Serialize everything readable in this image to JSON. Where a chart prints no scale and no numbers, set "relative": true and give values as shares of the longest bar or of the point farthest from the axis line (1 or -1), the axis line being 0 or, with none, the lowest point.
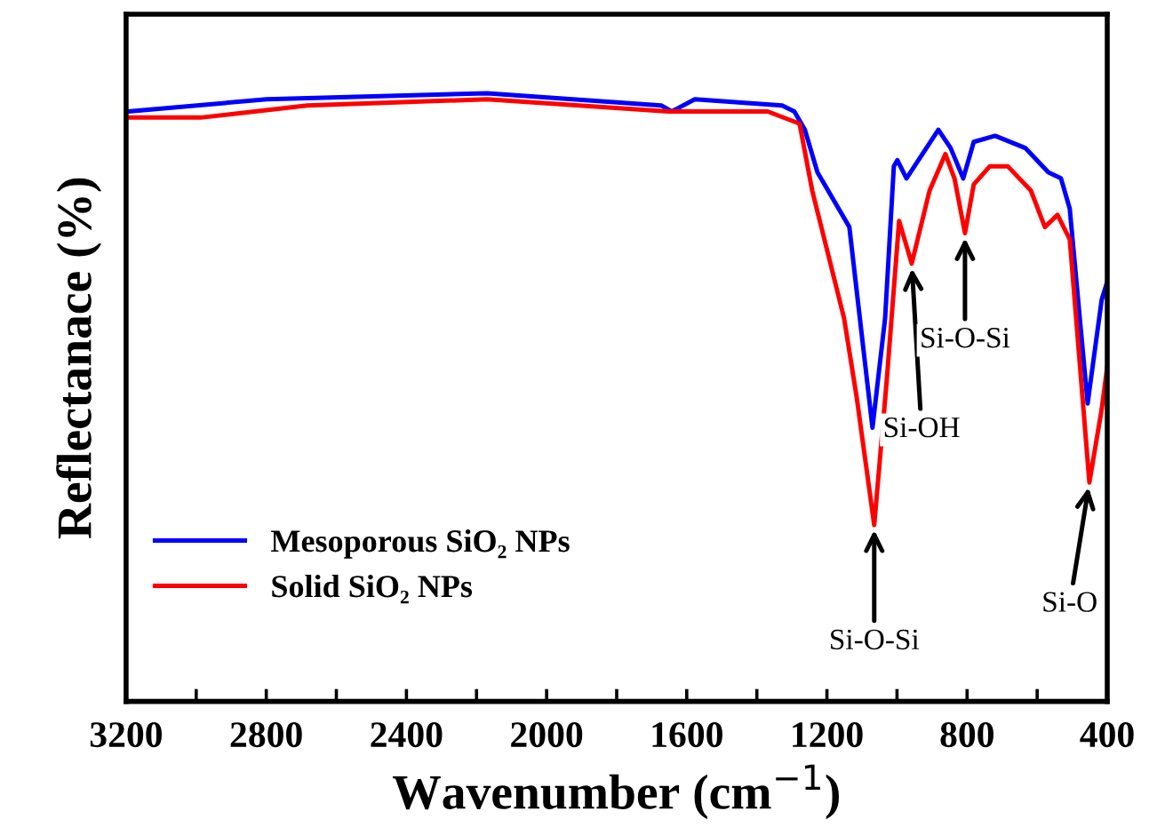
{
  "chart_data": {
    "type": "line",
    "relative": true,
    "xlabel": "Wavenumber (cm$^{−1}$)",
    "ylabel": "Reflectanace (%)",
    "xlim": [
      3200,
      400
    ],
    "xticks": [
      3200,
      {
        "value": 3000,
        "label": null
      },
      2800,
      {
        "value": 2600,
        "label": null
      },
      2400,
      {
        "value": 2200,
        "label": null
      },
      2000,
      {
        "value": 1800,
        "label": null
      },
      1600,
      {
        "value": 1400,
        "label": null
      },
      1200,
      {
        "value": 1000,
        "label": null
      },
      800,
      {
        "value": 600,
        "label": null
      },
      400
    ],
    "legend": "bottom left",
    "grid": false,
    "marker": "none",
    "line_style": "solid",
    "series": [
      {
        "name": "Mesoporous SiO₂ NPs",
        "color": "#0000ff",
        "x": [
          3195,
          2799,
          2170,
          1673,
          1643,
          1577,
          1328,
          1293,
          1263,
          1227,
          1136,
          1110,
          1070,
          1034,
          1009,
          999,
          973,
          882,
          847,
          811,
          781,
          720,
          634,
          568,
          532,
          507,
          456,
          416,
          400
        ],
        "values": [
          0.97,
          0.99,
          1.0,
          0.98,
          0.97,
          0.99,
          0.98,
          0.97,
          0.94,
          0.87,
          0.78,
          0.65,
          0.45,
          0.63,
          0.88,
          0.89,
          0.86,
          0.94,
          0.91,
          0.86,
          0.92,
          0.93,
          0.91,
          0.87,
          0.86,
          0.81,
          0.49,
          0.66,
          0.69
        ]
      },
      {
        "name": "Solid SiO₂ NPs",
        "color": "#ff0000",
        "x": [
          3195,
          2987,
          2683,
          2170,
          1653,
          1445,
          1369,
          1278,
          1242,
          1151,
          1115,
          1065,
          1029,
          994,
          958,
          907,
          862,
          836,
          806,
          781,
          735,
          684,
          618,
          578,
          542,
          507,
          451,
          416,
          400
        ],
        "values": [
          0.96,
          0.96,
          0.98,
          0.99,
          0.97,
          0.97,
          0.97,
          0.95,
          0.84,
          0.63,
          0.5,
          0.29,
          0.53,
          0.79,
          0.72,
          0.84,
          0.9,
          0.86,
          0.77,
          0.85,
          0.88,
          0.88,
          0.84,
          0.78,
          0.8,
          0.76,
          0.36,
          0.48,
          0.55
        ]
      }
    ],
    "annotations": [
      {
        "text": "Si-O-Si",
        "x": 1065,
        "y": 0.29
      },
      {
        "text": "Si-OH",
        "x": 958,
        "y": 0.72
      },
      {
        "text": "Si-O-Si",
        "x": 806,
        "y": 0.77
      },
      {
        "text": "Si-O",
        "x": 451,
        "y": 0.36
      }
    ]
  }
}
